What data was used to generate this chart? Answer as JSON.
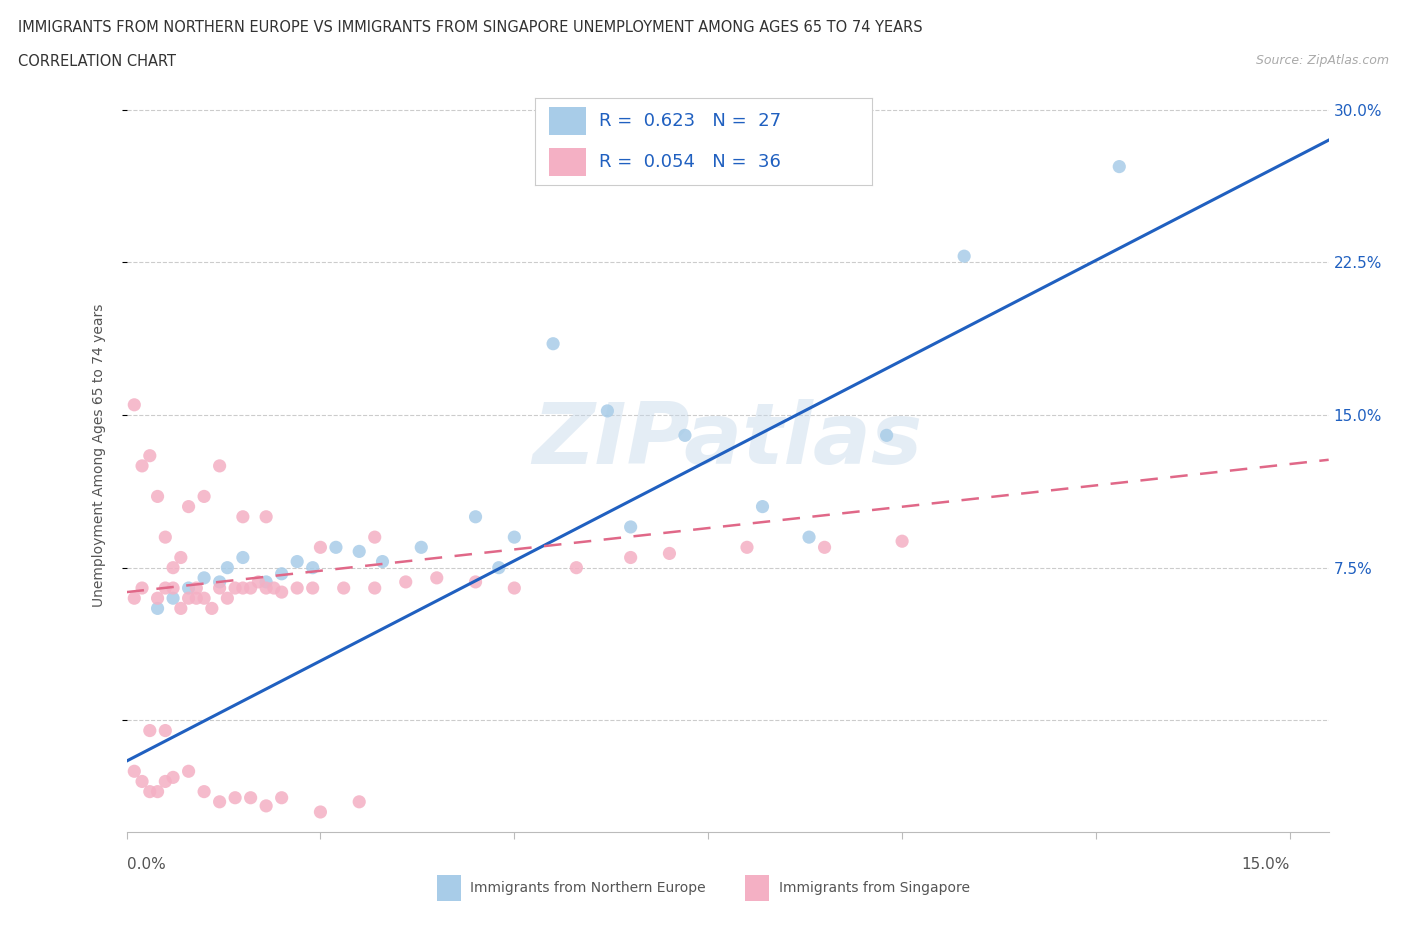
{
  "title_line1": "IMMIGRANTS FROM NORTHERN EUROPE VS IMMIGRANTS FROM SINGAPORE UNEMPLOYMENT AMONG AGES 65 TO 74 YEARS",
  "title_line2": "CORRELATION CHART",
  "source_text": "Source: ZipAtlas.com",
  "ylabel": "Unemployment Among Ages 65 to 74 years",
  "xlim": [
    0.0,
    0.155
  ],
  "ylim": [
    -0.055,
    0.315
  ],
  "ytick_vals": [
    0.0,
    0.075,
    0.15,
    0.225,
    0.3
  ],
  "ytick_labels": [
    "",
    "7.5%",
    "15.0%",
    "22.5%",
    "30.0%"
  ],
  "xtick_vals": [
    0.0,
    0.025,
    0.05,
    0.075,
    0.1,
    0.125,
    0.15
  ],
  "color_blue": "#a8cce8",
  "color_pink": "#f4b0c4",
  "color_blue_line": "#2060c0",
  "color_pink_line": "#e06888",
  "watermark": "ZIPatlas",
  "legend_R1": "0.623",
  "legend_N1": "27",
  "legend_R2": "0.054",
  "legend_N2": "36",
  "blue_x": [
    0.004,
    0.006,
    0.008,
    0.01,
    0.012,
    0.013,
    0.015,
    0.018,
    0.02,
    0.022,
    0.024,
    0.027,
    0.03,
    0.033,
    0.038,
    0.045,
    0.048,
    0.05,
    0.055,
    0.062,
    0.065,
    0.072,
    0.082,
    0.088,
    0.098,
    0.108,
    0.128
  ],
  "blue_y": [
    0.055,
    0.06,
    0.065,
    0.07,
    0.068,
    0.075,
    0.08,
    0.068,
    0.072,
    0.078,
    0.075,
    0.085,
    0.083,
    0.078,
    0.085,
    0.1,
    0.075,
    0.09,
    0.185,
    0.152,
    0.095,
    0.14,
    0.105,
    0.09,
    0.14,
    0.228,
    0.272
  ],
  "pink_x": [
    0.001,
    0.002,
    0.003,
    0.004,
    0.005,
    0.005,
    0.006,
    0.007,
    0.008,
    0.009,
    0.009,
    0.01,
    0.011,
    0.012,
    0.013,
    0.014,
    0.015,
    0.016,
    0.017,
    0.018,
    0.019,
    0.02,
    0.022,
    0.024,
    0.028,
    0.032,
    0.036,
    0.04,
    0.045,
    0.05,
    0.058,
    0.065,
    0.07,
    0.08,
    0.09,
    0.1
  ],
  "pink_y": [
    0.06,
    0.065,
    -0.005,
    0.06,
    -0.005,
    0.065,
    0.065,
    0.055,
    0.06,
    0.06,
    0.065,
    0.06,
    0.055,
    0.065,
    0.06,
    0.065,
    0.065,
    0.065,
    0.068,
    0.065,
    0.065,
    0.063,
    0.065,
    0.065,
    0.065,
    0.065,
    0.068,
    0.07,
    0.068,
    0.065,
    0.075,
    0.08,
    0.082,
    0.085,
    0.085,
    0.088
  ],
  "pink_outlier_x": [
    0.001,
    0.002,
    0.003,
    0.004,
    0.005,
    0.006,
    0.007,
    0.008,
    0.01,
    0.012,
    0.015,
    0.018,
    0.025,
    0.032
  ],
  "pink_outlier_y": [
    0.155,
    0.125,
    0.13,
    0.11,
    0.09,
    0.075,
    0.08,
    0.105,
    0.11,
    0.125,
    0.1,
    0.1,
    0.085,
    0.09
  ],
  "pink_low_x": [
    0.001,
    0.002,
    0.003,
    0.004,
    0.005,
    0.006,
    0.008,
    0.01,
    0.012,
    0.014,
    0.016,
    0.018,
    0.02,
    0.025,
    0.03
  ],
  "pink_low_y": [
    -0.025,
    -0.03,
    -0.035,
    -0.035,
    -0.03,
    -0.028,
    -0.025,
    -0.035,
    -0.04,
    -0.038,
    -0.038,
    -0.042,
    -0.038,
    -0.045,
    -0.04
  ],
  "blue_trend_y": [
    -0.02,
    0.285
  ],
  "pink_trend_y": [
    0.063,
    0.128
  ],
  "grid_color": "#cccccc"
}
